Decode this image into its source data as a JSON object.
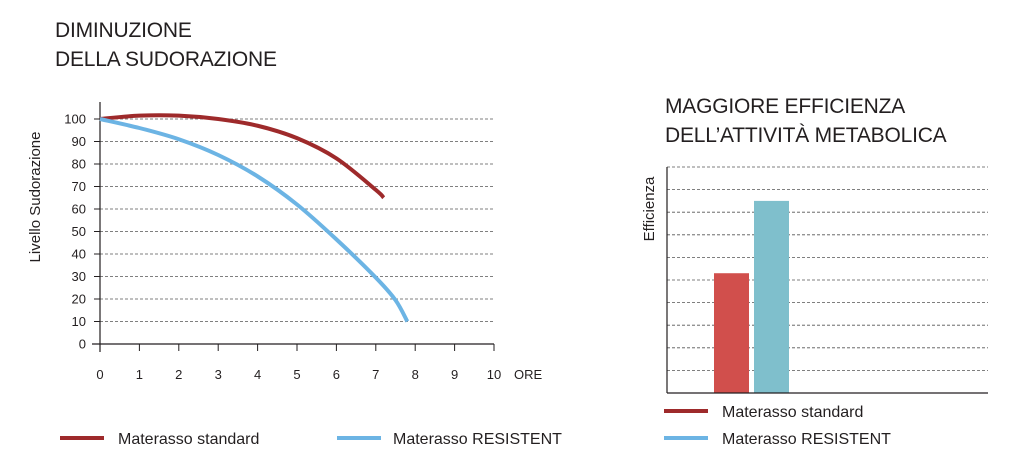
{
  "colors": {
    "standard_line": "#9e2a2b",
    "resistent_line": "#6cb4e4",
    "bar_standard": "#d14f4c",
    "bar_resistent": "#7fbfcc",
    "axis": "#231f20",
    "grid": "#555555"
  },
  "chart_data": [
    {
      "type": "line",
      "title_lines": [
        "DIMINUZIONE",
        "DELLA SUDORAZIONE"
      ],
      "xlabel": "ORE",
      "ylabel": "Livello Sudorazione",
      "x_ticks": [
        "0",
        "1",
        "2",
        "3",
        "4",
        "5",
        "6",
        "7",
        "8",
        "9",
        "10"
      ],
      "y_ticks": [
        "0",
        "10",
        "20",
        "30",
        "40",
        "50",
        "60",
        "70",
        "80",
        "90",
        "100"
      ],
      "xlim": [
        0,
        10
      ],
      "ylim": [
        0,
        100
      ],
      "grid": "horizontal dashed",
      "legend_placement": "bottom",
      "series": [
        {
          "name": "Materasso standard",
          "x": [
            0,
            1,
            2,
            3,
            4,
            5,
            6,
            7,
            7.2
          ],
          "y": [
            100,
            101.5,
            101.5,
            100,
            97,
            91.5,
            82.5,
            68.5,
            65
          ]
        },
        {
          "name": "Materasso RESISTENT",
          "x": [
            0,
            1,
            2,
            3,
            4,
            5,
            6,
            7,
            7.5,
            7.8
          ],
          "y": [
            100,
            96,
            91,
            84,
            74.5,
            62,
            46.5,
            29.5,
            19.5,
            10
          ]
        }
      ]
    },
    {
      "type": "bar",
      "title_lines": [
        "MAGGIORE EFFICIENZA",
        "DELL’ATTIVITÀ METABOLICA"
      ],
      "ylabel": "Efficienza",
      "categories": [
        "Materasso standard",
        "Materasso RESISTENT"
      ],
      "values": [
        53,
        85
      ],
      "ylim": [
        0,
        100
      ],
      "grid_lines": 10,
      "grid": "horizontal dashed",
      "legend_placement": "bottom"
    }
  ]
}
